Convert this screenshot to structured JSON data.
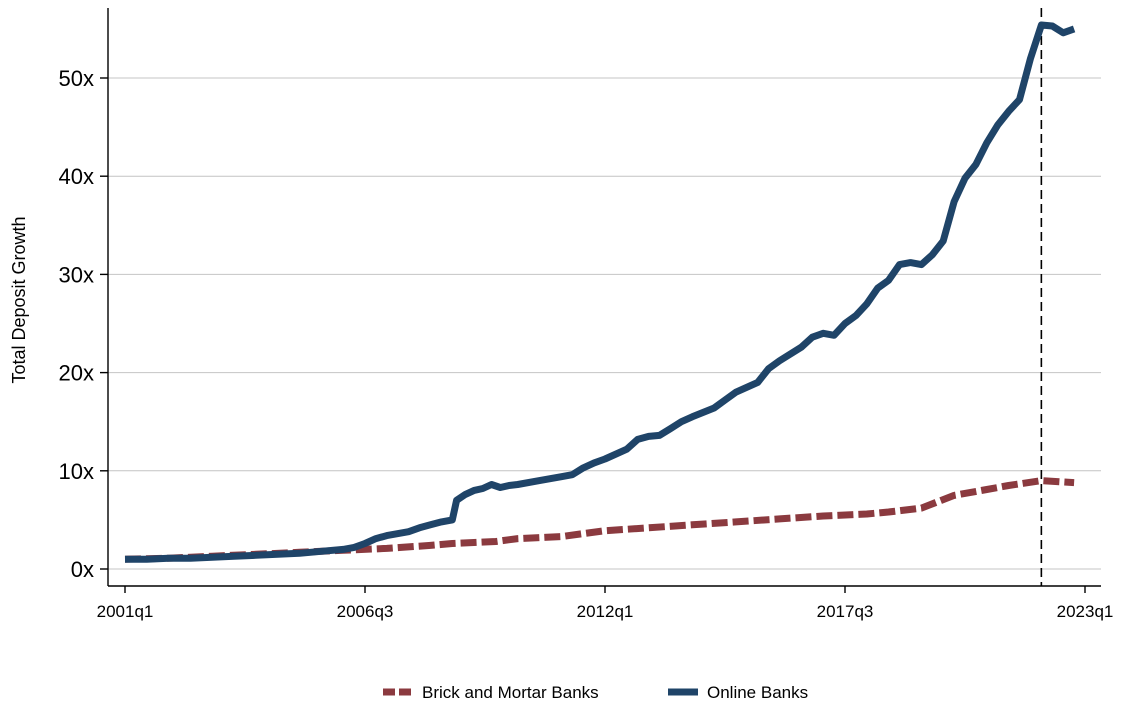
{
  "chart_data": {
    "type": "line",
    "title": "",
    "xlabel": "",
    "ylabel": "Total Deposit Growth",
    "x_range": [
      2001.0,
      2023.0
    ],
    "ylim": [
      0,
      57
    ],
    "y_ticks": [
      {
        "value": 0,
        "label": "0x"
      },
      {
        "value": 10,
        "label": "10x"
      },
      {
        "value": 20,
        "label": "20x"
      },
      {
        "value": 30,
        "label": "30x"
      },
      {
        "value": 40,
        "label": "40x"
      },
      {
        "value": 50,
        "label": "50x"
      }
    ],
    "x_ticks": [
      {
        "value": 2001.0,
        "label": "2001q1"
      },
      {
        "value": 2006.5,
        "label": "2006q3"
      },
      {
        "value": 2012.0,
        "label": "2012q1"
      },
      {
        "value": 2017.5,
        "label": "2017q3"
      },
      {
        "value": 2023.0,
        "label": "2023q1"
      }
    ],
    "grid": "horizontal",
    "vertical_marker": 2022.0,
    "legend_position": "bottom",
    "series": [
      {
        "name": "Brick and Mortar Banks",
        "color": "#8B3A3F",
        "style": "dashed",
        "points": [
          [
            2001.0,
            1.0
          ],
          [
            2002.0,
            1.1
          ],
          [
            2003.0,
            1.3
          ],
          [
            2004.0,
            1.5
          ],
          [
            2005.0,
            1.7
          ],
          [
            2006.0,
            1.9
          ],
          [
            2007.0,
            2.1
          ],
          [
            2008.0,
            2.4
          ],
          [
            2008.5,
            2.6
          ],
          [
            2009.5,
            2.8
          ],
          [
            2010.0,
            3.1
          ],
          [
            2011.0,
            3.3
          ],
          [
            2011.5,
            3.6
          ],
          [
            2012.0,
            3.9
          ],
          [
            2013.0,
            4.2
          ],
          [
            2014.0,
            4.5
          ],
          [
            2015.0,
            4.8
          ],
          [
            2016.0,
            5.1
          ],
          [
            2017.0,
            5.4
          ],
          [
            2018.0,
            5.6
          ],
          [
            2018.5,
            5.8
          ],
          [
            2019.25,
            6.2
          ],
          [
            2020.0,
            7.5
          ],
          [
            2020.75,
            8.1
          ],
          [
            2021.25,
            8.5
          ],
          [
            2022.0,
            9.0
          ],
          [
            2022.75,
            8.8
          ]
        ]
      },
      {
        "name": "Online Banks",
        "color": "#1F4468",
        "style": "solid",
        "points": [
          [
            2001.0,
            1.0
          ],
          [
            2001.5,
            1.0
          ],
          [
            2002.0,
            1.1
          ],
          [
            2002.5,
            1.1
          ],
          [
            2003.0,
            1.2
          ],
          [
            2003.5,
            1.3
          ],
          [
            2004.0,
            1.4
          ],
          [
            2004.5,
            1.5
          ],
          [
            2005.0,
            1.6
          ],
          [
            2005.5,
            1.8
          ],
          [
            2006.0,
            2.0
          ],
          [
            2006.25,
            2.2
          ],
          [
            2006.5,
            2.6
          ],
          [
            2006.75,
            3.1
          ],
          [
            2007.0,
            3.4
          ],
          [
            2007.5,
            3.8
          ],
          [
            2007.75,
            4.2
          ],
          [
            2008.0,
            4.5
          ],
          [
            2008.25,
            4.8
          ],
          [
            2008.5,
            5.0
          ],
          [
            2008.6,
            7.0
          ],
          [
            2008.8,
            7.6
          ],
          [
            2009.0,
            8.0
          ],
          [
            2009.2,
            8.2
          ],
          [
            2009.4,
            8.6
          ],
          [
            2009.6,
            8.3
          ],
          [
            2009.8,
            8.5
          ],
          [
            2010.0,
            8.6
          ],
          [
            2010.5,
            9.0
          ],
          [
            2011.0,
            9.4
          ],
          [
            2011.25,
            9.6
          ],
          [
            2011.5,
            10.3
          ],
          [
            2011.75,
            10.8
          ],
          [
            2012.0,
            11.2
          ],
          [
            2012.5,
            12.2
          ],
          [
            2012.75,
            13.2
          ],
          [
            2013.0,
            13.5
          ],
          [
            2013.25,
            13.6
          ],
          [
            2013.5,
            14.3
          ],
          [
            2013.75,
            15.0
          ],
          [
            2014.0,
            15.5
          ],
          [
            2014.5,
            16.4
          ],
          [
            2014.75,
            17.2
          ],
          [
            2015.0,
            18.0
          ],
          [
            2015.5,
            19.0
          ],
          [
            2015.75,
            20.4
          ],
          [
            2016.0,
            21.2
          ],
          [
            2016.5,
            22.6
          ],
          [
            2016.75,
            23.6
          ],
          [
            2017.0,
            24.0
          ],
          [
            2017.25,
            23.8
          ],
          [
            2017.5,
            25.0
          ],
          [
            2017.75,
            25.8
          ],
          [
            2018.0,
            27.0
          ],
          [
            2018.25,
            28.6
          ],
          [
            2018.5,
            29.4
          ],
          [
            2018.75,
            31.0
          ],
          [
            2019.0,
            31.2
          ],
          [
            2019.25,
            31.0
          ],
          [
            2019.5,
            32.0
          ],
          [
            2019.75,
            33.4
          ],
          [
            2020.0,
            37.4
          ],
          [
            2020.25,
            39.8
          ],
          [
            2020.5,
            41.2
          ],
          [
            2020.75,
            43.4
          ],
          [
            2021.0,
            45.2
          ],
          [
            2021.25,
            46.6
          ],
          [
            2021.5,
            47.8
          ],
          [
            2021.75,
            52.0
          ],
          [
            2022.0,
            55.4
          ],
          [
            2022.25,
            55.3
          ],
          [
            2022.5,
            54.6
          ],
          [
            2022.75,
            55.0
          ]
        ]
      }
    ]
  }
}
